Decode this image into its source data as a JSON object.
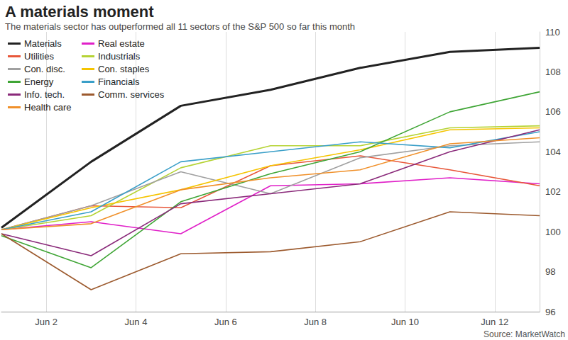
{
  "chart_data": {
    "type": "line",
    "title": "A materials moment",
    "subtitle": "The materials sector has outperformed all 11 sectors of the S&P 500 so far this month",
    "annotations": [
      "Source: MarketWatch"
    ],
    "x": [
      1,
      3,
      5,
      7,
      9,
      11,
      13
    ],
    "xlim": [
      1,
      13
    ],
    "xticks": [
      {
        "value": 2,
        "label": "Jun 2"
      },
      {
        "value": 4,
        "label": "Jun 4"
      },
      {
        "value": 6,
        "label": "Jun 6"
      },
      {
        "value": 8,
        "label": "Jun 8"
      },
      {
        "value": 10,
        "label": "Jun 10"
      },
      {
        "value": 12,
        "label": "Jun 12"
      }
    ],
    "ylim": [
      96,
      110
    ],
    "yticks": [
      96,
      98,
      100,
      102,
      104,
      106,
      108,
      110
    ],
    "grid": true,
    "legend": "top-left",
    "series": [
      {
        "name": "Materials",
        "color": "#222222",
        "values": [
          100.2,
          103.5,
          106.3,
          107.1,
          108.2,
          109.0,
          109.2
        ]
      },
      {
        "name": "Real estate",
        "color": "#e020c8",
        "values": [
          100.1,
          100.5,
          99.9,
          102.3,
          102.4,
          102.7,
          102.4
        ]
      },
      {
        "name": "Utilities",
        "color": "#e8573a",
        "values": [
          100.1,
          101.3,
          101.2,
          103.3,
          103.8,
          103.1,
          102.3
        ]
      },
      {
        "name": "Industrials",
        "color": "#b5d334",
        "values": [
          100.1,
          100.8,
          103.2,
          104.3,
          104.3,
          105.2,
          105.3
        ]
      },
      {
        "name": "Con. disc.",
        "color": "#a0a0a0",
        "values": [
          100.1,
          101.3,
          103.0,
          101.9,
          103.7,
          104.3,
          104.5
        ]
      },
      {
        "name": "Con. staples",
        "color": "#f5c400",
        "values": [
          100.1,
          101.2,
          102.1,
          103.3,
          104.1,
          105.1,
          105.2
        ]
      },
      {
        "name": "Energy",
        "color": "#3fa535",
        "values": [
          99.8,
          98.2,
          101.5,
          102.9,
          104.0,
          106.0,
          107.0
        ]
      },
      {
        "name": "Financials",
        "color": "#3a9fc8",
        "values": [
          100.1,
          101.0,
          103.5,
          104.0,
          104.5,
          104.2,
          105.0
        ]
      },
      {
        "name": "Info. tech.",
        "color": "#8a2a7a",
        "values": [
          99.9,
          98.8,
          101.4,
          101.9,
          102.4,
          104.0,
          105.1
        ]
      },
      {
        "name": "Comm. services",
        "color": "#9c5a2e",
        "values": [
          99.9,
          97.1,
          98.9,
          99.0,
          99.5,
          101.0,
          100.8
        ]
      },
      {
        "name": "Health care",
        "color": "#f0902a",
        "values": [
          100.1,
          100.4,
          102.1,
          102.7,
          103.1,
          104.4,
          104.7
        ]
      }
    ]
  }
}
